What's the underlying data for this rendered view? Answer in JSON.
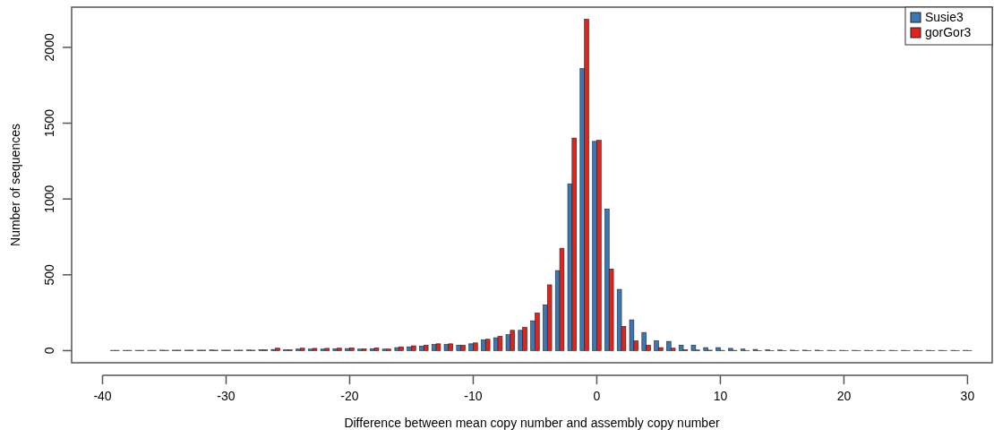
{
  "chart_data": {
    "type": "bar",
    "xlabel": "Difference between mean copy number and assembly copy number",
    "ylabel": "Number of sequences",
    "x": [
      -39,
      -38,
      -37,
      -36,
      -35,
      -34,
      -33,
      -32,
      -31,
      -30,
      -29,
      -28,
      -27,
      -26,
      -25,
      -24,
      -23,
      -22,
      -21,
      -20,
      -19,
      -18,
      -17,
      -16,
      -15,
      -14,
      -13,
      -12,
      -11,
      -10,
      -9,
      -8,
      -7,
      -6,
      -5,
      -4,
      -3,
      -2,
      -1,
      0,
      1,
      2,
      3,
      4,
      5,
      6,
      7,
      8,
      9,
      10,
      11,
      12,
      13,
      14,
      15,
      16,
      17,
      18,
      19,
      20,
      21,
      22,
      23,
      24,
      25,
      26,
      27,
      28,
      29,
      30
    ],
    "series": [
      {
        "name": "Susie3",
        "color": "#3a78b5",
        "values": [
          2,
          2,
          2,
          2,
          3,
          3,
          3,
          3,
          4,
          3,
          3,
          4,
          5,
          8,
          5,
          10,
          10,
          10,
          12,
          14,
          10,
          12,
          10,
          20,
          25,
          30,
          40,
          40,
          36,
          45,
          71,
          85,
          105,
          134,
          197,
          302,
          528,
          1100,
          1860,
          1380,
          934,
          404,
          203,
          120,
          65,
          61,
          36,
          36,
          20,
          20,
          15,
          10,
          8,
          5,
          4,
          3,
          3,
          3,
          2,
          2,
          2,
          2,
          2,
          2,
          2,
          2,
          2,
          2,
          2,
          2
        ]
      },
      {
        "name": "gorGor3",
        "color": "#e0231c",
        "values": [
          2,
          2,
          2,
          2,
          2,
          3,
          3,
          3,
          3,
          3,
          3,
          3,
          5,
          16,
          6,
          16,
          15,
          15,
          16,
          18,
          12,
          18,
          10,
          25,
          32,
          36,
          45,
          45,
          36,
          51,
          75,
          95,
          134,
          154,
          248,
          434,
          675,
          1402,
          2185,
          1387,
          538,
          160,
          65,
          36,
          20,
          16,
          6,
          4,
          3,
          2,
          2,
          1,
          1,
          1,
          1,
          1,
          1,
          1,
          1,
          1,
          1,
          1,
          1,
          1,
          1,
          1,
          1,
          1,
          1,
          1
        ]
      }
    ],
    "xlim": [
      -42.5,
      32
    ],
    "ylim": [
      -80,
      2265
    ],
    "xticks": [
      -40,
      -30,
      -20,
      -10,
      0,
      10,
      20,
      30
    ],
    "yticks": [
      0,
      500,
      1000,
      1500,
      2000
    ],
    "legend": "top right"
  }
}
